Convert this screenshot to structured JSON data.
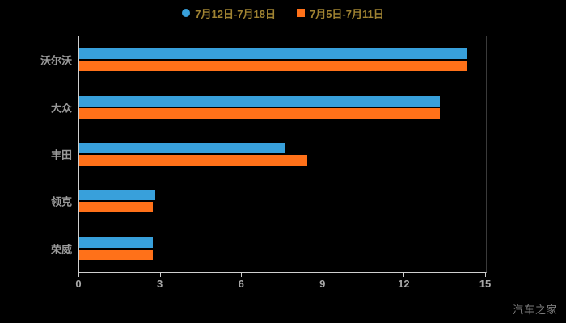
{
  "chart_data": {
    "type": "bar",
    "orientation": "horizontal",
    "title": "",
    "categories": [
      "沃尔沃",
      "大众",
      "丰田",
      "领克",
      "荣威"
    ],
    "series": [
      {
        "name": "7月12日-7月18日",
        "color": "#38a0db",
        "marker": "circle",
        "values": [
          14.3,
          13.3,
          7.6,
          2.8,
          2.7
        ]
      },
      {
        "name": "7月5日-7月11日",
        "color": "#ff7119",
        "marker": "square",
        "values": [
          14.3,
          13.3,
          8.4,
          2.7,
          2.7
        ]
      }
    ],
    "xlabel": "",
    "ylabel": "",
    "xlim": [
      0,
      15
    ],
    "xticks": [
      0,
      3,
      6,
      9,
      12,
      15
    ],
    "grid": false,
    "legend_position": "top",
    "background_color": "#000000",
    "axis_color": "#cfcfcf",
    "label_color": "#999999",
    "legend_text_color": "#a08332"
  },
  "watermark": {
    "text": "汽车之家"
  }
}
